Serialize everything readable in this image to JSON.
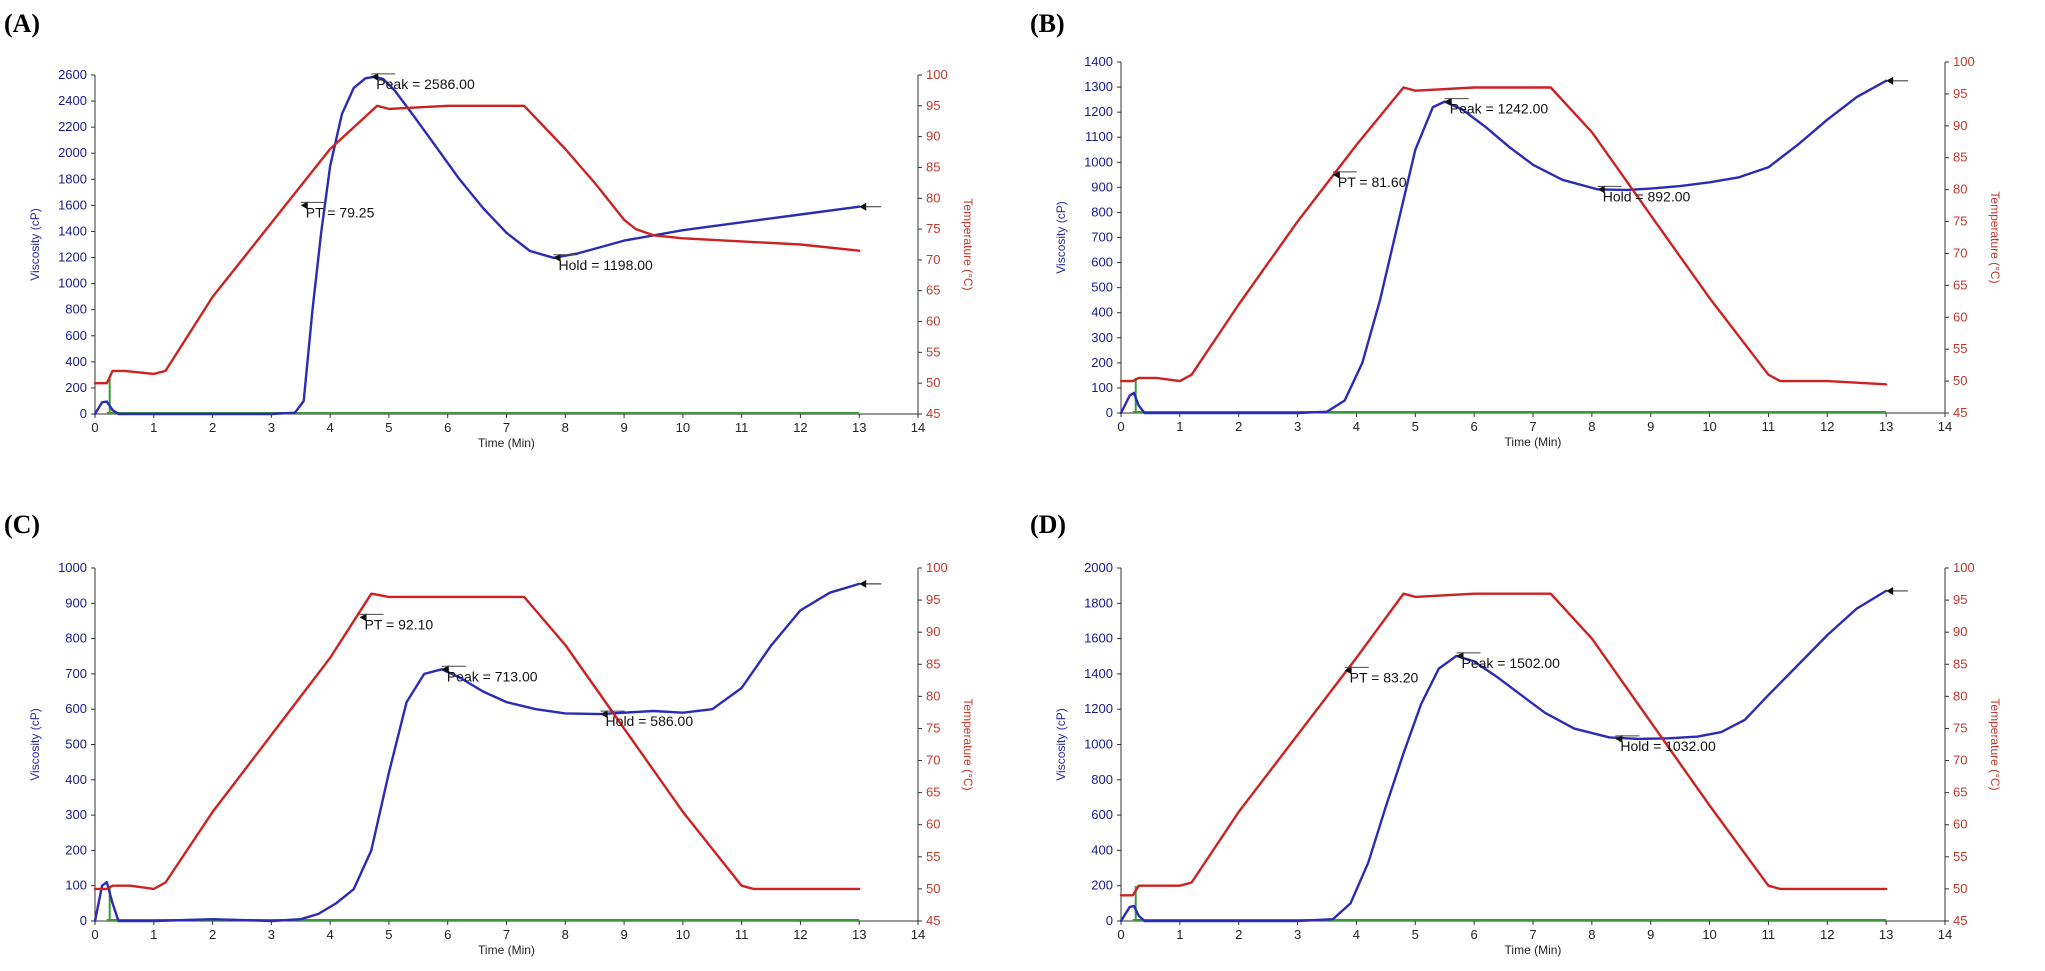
{
  "chart_data": [
    {
      "panel": "(A)",
      "type": "line",
      "xlabel": "Time  (Min)",
      "ylabel": "Viscosity (cP)",
      "y2label": "Temperature (°C)",
      "xlim": [
        0,
        14
      ],
      "ylim": [
        0,
        2600
      ],
      "y2lim": [
        45,
        100
      ],
      "x_ticks": [
        "0",
        "1",
        "2",
        "3",
        "4",
        "5",
        "6",
        "7",
        "8",
        "9",
        "10",
        "11",
        "12",
        "13",
        "14"
      ],
      "y_ticks": [
        "0",
        "200",
        "400",
        "600",
        "800",
        "1000",
        "1200",
        "1400",
        "1600",
        "1800",
        "2000",
        "2200",
        "2400",
        "2600"
      ],
      "y2_ticks": [
        "45",
        "50",
        "55",
        "60",
        "65",
        "70",
        "75",
        "80",
        "85",
        "90",
        "95",
        "100"
      ],
      "series": [
        {
          "name": "Viscosity",
          "axis": "left",
          "color": "#2b2bb5",
          "x": [
            0,
            0.12,
            0.2,
            0.3,
            0.4,
            1,
            2,
            3,
            3.4,
            3.55,
            3.7,
            3.85,
            4.0,
            4.2,
            4.4,
            4.6,
            4.75,
            4.9,
            5.1,
            5.4,
            5.8,
            6.2,
            6.6,
            7.0,
            7.4,
            7.8,
            8.2,
            8.6,
            9,
            10,
            11,
            12,
            13
          ],
          "y": [
            0,
            90,
            95,
            30,
            0,
            0,
            0,
            0,
            10,
            100,
            800,
            1400,
            1900,
            2300,
            2500,
            2575,
            2586,
            2570,
            2480,
            2300,
            2050,
            1800,
            1580,
            1390,
            1250,
            1198,
            1230,
            1280,
            1330,
            1410,
            1470,
            1530,
            1590
          ]
        },
        {
          "name": "Temperature",
          "axis": "right",
          "color": "#cc2222",
          "x": [
            0,
            0.2,
            0.3,
            0.5,
            1,
            1.2,
            2,
            3,
            4,
            4.8,
            5,
            6,
            7,
            7.3,
            8,
            8.5,
            9,
            9.2,
            9.5,
            10,
            11,
            12,
            13
          ],
          "y": [
            50,
            50,
            52,
            52,
            51.5,
            52,
            64,
            76,
            88,
            95,
            94.5,
            95,
            95,
            95,
            88,
            82.5,
            76.5,
            75,
            74,
            73.5,
            73,
            72.5,
            71.5
          ]
        }
      ],
      "annotations": [
        {
          "text": "Peak = 2586.00",
          "x": 4.7,
          "y": 2586
        },
        {
          "text": "PT = 79.25",
          "x": 3.5,
          "y": 1600
        },
        {
          "text": "Hold = 1198.00",
          "x": 7.8,
          "y": 1198
        }
      ]
    },
    {
      "panel": "(B)",
      "type": "line",
      "xlabel": "Time  (Min)",
      "ylabel": "Viscosity (cP)",
      "y2label": "Temperature (°C)",
      "xlim": [
        0,
        14
      ],
      "ylim": [
        0,
        1400
      ],
      "y2lim": [
        45,
        100
      ],
      "x_ticks": [
        "0",
        "1",
        "2",
        "3",
        "4",
        "5",
        "6",
        "7",
        "8",
        "9",
        "10",
        "11",
        "12",
        "13",
        "14"
      ],
      "y_ticks": [
        "0",
        "100",
        "200",
        "300",
        "400",
        "500",
        "600",
        "700",
        "800",
        "900",
        "1000",
        "1100",
        "1200",
        "1300",
        "1400"
      ],
      "y2_ticks": [
        "45",
        "50",
        "55",
        "60",
        "65",
        "70",
        "75",
        "80",
        "85",
        "90",
        "95",
        "100"
      ],
      "series": [
        {
          "name": "Viscosity",
          "axis": "left",
          "color": "#2b2bb5",
          "x": [
            0,
            0.15,
            0.22,
            0.3,
            0.4,
            1,
            2,
            3,
            3.5,
            3.8,
            4.1,
            4.4,
            4.7,
            5.0,
            5.3,
            5.5,
            5.8,
            6.2,
            6.6,
            7,
            7.5,
            8.1,
            8.6,
            9,
            9.5,
            10,
            10.5,
            11,
            11.5,
            12,
            12.5,
            13
          ],
          "y": [
            0,
            70,
            80,
            30,
            0,
            0,
            0,
            0,
            5,
            50,
            200,
            450,
            750,
            1050,
            1220,
            1242,
            1210,
            1140,
            1060,
            990,
            930,
            892,
            890,
            895,
            905,
            920,
            940,
            980,
            1070,
            1170,
            1260,
            1325
          ]
        },
        {
          "name": "Temperature",
          "axis": "right",
          "color": "#cc2222",
          "x": [
            0,
            0.2,
            0.3,
            0.6,
            1,
            1.2,
            2,
            3,
            4,
            4.8,
            5,
            6,
            7,
            7.3,
            8,
            9,
            10,
            11,
            11.2,
            12,
            13
          ],
          "y": [
            50,
            50,
            50.5,
            50.5,
            50,
            51,
            62,
            75,
            87,
            96,
            95.5,
            96,
            96,
            96,
            89,
            76,
            63,
            51,
            50,
            50,
            49.5
          ]
        }
      ],
      "annotations": [
        {
          "text": "Peak = 1242.00",
          "x": 5.5,
          "y": 1242
        },
        {
          "text": "PT = 81.60",
          "x": 3.6,
          "y": 950
        },
        {
          "text": "Hold = 892.00",
          "x": 8.1,
          "y": 892
        }
      ]
    },
    {
      "panel": "(C)",
      "type": "line",
      "xlabel": "Time  (Min)",
      "ylabel": "Viscosity (cP)",
      "y2label": "Temperature (°C)",
      "xlim": [
        0,
        14
      ],
      "ylim": [
        0,
        1000
      ],
      "y2lim": [
        45,
        100
      ],
      "x_ticks": [
        "0",
        "1",
        "2",
        "3",
        "4",
        "5",
        "6",
        "7",
        "8",
        "9",
        "10",
        "11",
        "12",
        "13",
        "14"
      ],
      "y_ticks": [
        "0",
        "100",
        "200",
        "300",
        "400",
        "500",
        "600",
        "700",
        "800",
        "900",
        "1000"
      ],
      "y2_ticks": [
        "45",
        "50",
        "55",
        "60",
        "65",
        "70",
        "75",
        "80",
        "85",
        "90",
        "95",
        "100"
      ],
      "series": [
        {
          "name": "Viscosity",
          "axis": "left",
          "color": "#2b2bb5",
          "x": [
            0,
            0.12,
            0.2,
            0.3,
            0.4,
            1,
            2,
            3,
            3.5,
            3.8,
            4.1,
            4.4,
            4.7,
            5.0,
            5.3,
            5.6,
            5.9,
            6.2,
            6.6,
            7,
            7.5,
            8,
            8.6,
            9,
            9.5,
            10,
            10.5,
            11,
            11.5,
            12,
            12.5,
            13
          ],
          "y": [
            0,
            100,
            110,
            50,
            0,
            0,
            5,
            0,
            5,
            20,
            50,
            90,
            200,
            420,
            620,
            700,
            713,
            690,
            650,
            620,
            600,
            588,
            586,
            590,
            595,
            590,
            600,
            660,
            780,
            880,
            930,
            955
          ]
        },
        {
          "name": "Temperature",
          "axis": "right",
          "color": "#cc2222",
          "x": [
            0,
            0.2,
            0.3,
            0.6,
            1,
            1.2,
            2,
            3,
            4,
            4.7,
            5,
            6,
            7,
            7.3,
            8,
            9,
            10,
            11,
            11.2,
            12,
            13
          ],
          "y": [
            50,
            50,
            50.5,
            50.5,
            50,
            51,
            62,
            74,
            86,
            96,
            95.5,
            95.5,
            95.5,
            95.5,
            88,
            75,
            62,
            50.5,
            50,
            50,
            50
          ]
        }
      ],
      "annotations": [
        {
          "text": "Peak = 713.00",
          "x": 5.9,
          "y": 713
        },
        {
          "text": "PT = 92.10",
          "x": 4.5,
          "y": 860
        },
        {
          "text": "Hold = 586.00",
          "x": 8.6,
          "y": 586
        }
      ]
    },
    {
      "panel": "(D)",
      "type": "line",
      "xlabel": "Time  (Min)",
      "ylabel": "Viscosity (cP)",
      "y2label": "Temperature (°C)",
      "xlim": [
        0,
        14
      ],
      "ylim": [
        0,
        2000
      ],
      "y2lim": [
        45,
        100
      ],
      "x_ticks": [
        "0",
        "1",
        "2",
        "3",
        "4",
        "5",
        "6",
        "7",
        "8",
        "9",
        "10",
        "11",
        "12",
        "13",
        "14"
      ],
      "y_ticks": [
        "0",
        "200",
        "400",
        "600",
        "800",
        "1000",
        "1200",
        "1400",
        "1600",
        "1800",
        "2000"
      ],
      "y2_ticks": [
        "45",
        "50",
        "55",
        "60",
        "65",
        "70",
        "75",
        "80",
        "85",
        "90",
        "95",
        "100"
      ],
      "series": [
        {
          "name": "Viscosity",
          "axis": "left",
          "color": "#2b2bb5",
          "x": [
            0,
            0.15,
            0.22,
            0.3,
            0.4,
            1,
            2,
            3,
            3.6,
            3.9,
            4.2,
            4.5,
            4.8,
            5.1,
            5.4,
            5.7,
            6.0,
            6.4,
            6.8,
            7.2,
            7.7,
            8.3,
            8.8,
            9.3,
            9.8,
            10.2,
            10.6,
            11,
            11.5,
            12,
            12.5,
            13
          ],
          "y": [
            0,
            80,
            85,
            30,
            0,
            0,
            0,
            0,
            10,
            100,
            330,
            650,
            950,
            1230,
            1430,
            1502,
            1470,
            1380,
            1280,
            1180,
            1090,
            1040,
            1032,
            1035,
            1045,
            1070,
            1140,
            1280,
            1450,
            1620,
            1770,
            1870
          ]
        },
        {
          "name": "Temperature",
          "axis": "right",
          "color": "#cc2222",
          "x": [
            0,
            0.2,
            0.3,
            0.6,
            1,
            1.2,
            2,
            3,
            4,
            4.8,
            5,
            6,
            7,
            7.3,
            8,
            9,
            10,
            11,
            11.2,
            12,
            13
          ],
          "y": [
            49,
            49,
            50.5,
            50.5,
            50.5,
            51,
            62,
            74,
            86,
            96,
            95.5,
            96,
            96,
            96,
            89,
            76,
            63,
            50.5,
            50,
            50,
            50
          ]
        }
      ],
      "annotations": [
        {
          "text": "Peak = 1502.00",
          "x": 5.7,
          "y": 1502
        },
        {
          "text": "PT = 83.20",
          "x": 3.8,
          "y": 1420
        },
        {
          "text": "Hold = 1032.00",
          "x": 8.4,
          "y": 1032
        }
      ]
    }
  ]
}
